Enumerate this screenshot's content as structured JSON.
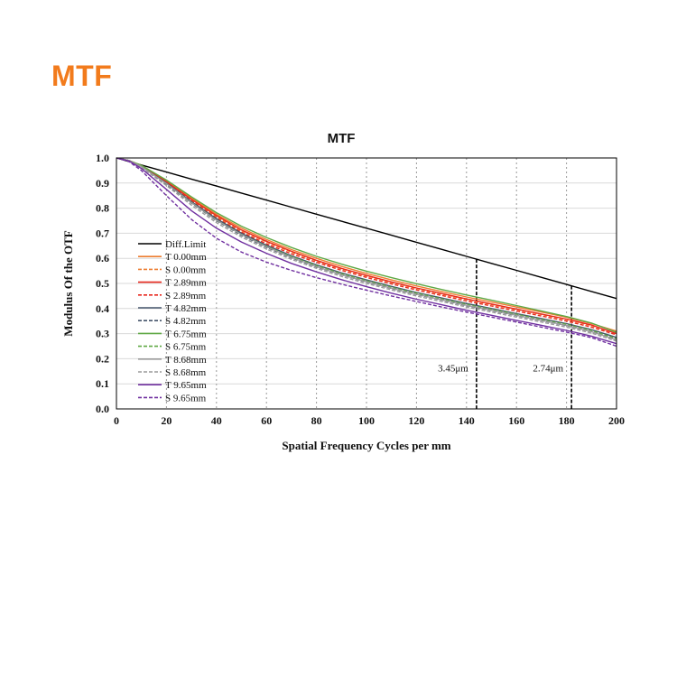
{
  "page": {
    "heading": "MTF"
  },
  "chart_data": {
    "type": "line",
    "title": "MTF",
    "xlabel": "Spatial Frequency Cycles per mm",
    "ylabel": "Modulus Of the OTF",
    "xlim": [
      0,
      200
    ],
    "ylim": [
      0,
      1.0
    ],
    "xticks": [
      "0",
      "20",
      "40",
      "60",
      "80",
      "100",
      "120",
      "140",
      "160",
      "180",
      "200"
    ],
    "yticks": [
      "0.0",
      "0.1",
      "0.2",
      "0.3",
      "0.4",
      "0.5",
      "0.6",
      "0.7",
      "0.8",
      "0.9",
      "1.0"
    ],
    "grid": {
      "vertical": "dotted",
      "horizontal": "solid-light"
    },
    "legend_position": "lower-left",
    "x": [
      0,
      5,
      10,
      20,
      30,
      40,
      50,
      60,
      70,
      80,
      90,
      100,
      110,
      120,
      130,
      140,
      150,
      160,
      170,
      180,
      190,
      200
    ],
    "series": [
      {
        "name": "Diff.Limit",
        "color": "#000000",
        "dash": "solid",
        "values": [
          1.0,
          0.986,
          0.972,
          0.944,
          0.916,
          0.888,
          0.86,
          0.832,
          0.804,
          0.776,
          0.748,
          0.72,
          0.692,
          0.664,
          0.636,
          0.608,
          0.58,
          0.552,
          0.524,
          0.496,
          0.468,
          0.44
        ]
      },
      {
        "name": "T 0.00mm",
        "color": "#ed7d31",
        "dash": "solid",
        "values": [
          1.0,
          0.99,
          0.97,
          0.91,
          0.84,
          0.775,
          0.72,
          0.675,
          0.635,
          0.6,
          0.568,
          0.54,
          0.514,
          0.49,
          0.468,
          0.446,
          0.426,
          0.406,
          0.386,
          0.365,
          0.34,
          0.31
        ]
      },
      {
        "name": "S 0.00mm",
        "color": "#ed7d31",
        "dash": "dashed",
        "values": [
          1.0,
          0.99,
          0.968,
          0.905,
          0.832,
          0.765,
          0.71,
          0.665,
          0.625,
          0.59,
          0.558,
          0.53,
          0.504,
          0.48,
          0.458,
          0.436,
          0.416,
          0.396,
          0.376,
          0.356,
          0.332,
          0.3
        ]
      },
      {
        "name": "T 2.89mm",
        "color": "#e8281e",
        "dash": "solid",
        "values": [
          1.0,
          0.99,
          0.968,
          0.905,
          0.835,
          0.77,
          0.713,
          0.668,
          0.628,
          0.592,
          0.56,
          0.532,
          0.506,
          0.482,
          0.46,
          0.438,
          0.418,
          0.398,
          0.378,
          0.358,
          0.334,
          0.3
        ]
      },
      {
        "name": "S 2.89mm",
        "color": "#e8281e",
        "dash": "dashed",
        "values": [
          1.0,
          0.99,
          0.966,
          0.9,
          0.828,
          0.76,
          0.704,
          0.658,
          0.618,
          0.584,
          0.552,
          0.524,
          0.498,
          0.474,
          0.452,
          0.43,
          0.41,
          0.39,
          0.37,
          0.35,
          0.326,
          0.295
        ]
      },
      {
        "name": "T 4.82mm",
        "color": "#44546a",
        "dash": "solid",
        "values": [
          1.0,
          0.99,
          0.966,
          0.9,
          0.826,
          0.758,
          0.7,
          0.652,
          0.61,
          0.574,
          0.542,
          0.514,
          0.488,
          0.464,
          0.442,
          0.42,
          0.4,
          0.38,
          0.36,
          0.34,
          0.316,
          0.285
        ]
      },
      {
        "name": "S 4.82mm",
        "color": "#44546a",
        "dash": "dashed",
        "values": [
          1.0,
          0.99,
          0.964,
          0.895,
          0.82,
          0.75,
          0.692,
          0.644,
          0.602,
          0.566,
          0.534,
          0.506,
          0.48,
          0.456,
          0.434,
          0.412,
          0.392,
          0.372,
          0.352,
          0.332,
          0.308,
          0.278
        ]
      },
      {
        "name": "T 6.75mm",
        "color": "#5fa844",
        "dash": "solid",
        "values": [
          1.0,
          0.99,
          0.97,
          0.912,
          0.845,
          0.782,
          0.728,
          0.683,
          0.643,
          0.608,
          0.577,
          0.549,
          0.523,
          0.499,
          0.476,
          0.454,
          0.433,
          0.412,
          0.39,
          0.368,
          0.342,
          0.305
        ]
      },
      {
        "name": "S 6.75mm",
        "color": "#5fa844",
        "dash": "dashed",
        "values": [
          1.0,
          0.99,
          0.966,
          0.898,
          0.822,
          0.752,
          0.695,
          0.648,
          0.607,
          0.571,
          0.539,
          0.511,
          0.485,
          0.461,
          0.439,
          0.417,
          0.397,
          0.377,
          0.357,
          0.337,
          0.313,
          0.28
        ]
      },
      {
        "name": "T 8.68mm",
        "color": "#9a9a9a",
        "dash": "solid",
        "values": [
          1.0,
          0.99,
          0.966,
          0.898,
          0.822,
          0.752,
          0.695,
          0.646,
          0.604,
          0.567,
          0.535,
          0.507,
          0.481,
          0.457,
          0.435,
          0.413,
          0.393,
          0.373,
          0.353,
          0.333,
          0.308,
          0.275
        ]
      },
      {
        "name": "S 8.68mm",
        "color": "#9a9a9a",
        "dash": "dashed",
        "values": [
          1.0,
          0.99,
          0.962,
          0.89,
          0.812,
          0.742,
          0.685,
          0.637,
          0.596,
          0.56,
          0.528,
          0.5,
          0.474,
          0.45,
          0.428,
          0.406,
          0.386,
          0.366,
          0.346,
          0.326,
          0.302,
          0.27
        ]
      },
      {
        "name": "T 9.65mm",
        "color": "#7030a0",
        "dash": "solid",
        "values": [
          1.0,
          0.988,
          0.958,
          0.875,
          0.79,
          0.72,
          0.665,
          0.62,
          0.58,
          0.546,
          0.515,
          0.487,
          0.461,
          0.437,
          0.415,
          0.393,
          0.373,
          0.353,
          0.333,
          0.313,
          0.29,
          0.26
        ]
      },
      {
        "name": "S 9.65mm",
        "color": "#7030a0",
        "dash": "dashed",
        "values": [
          1.0,
          0.986,
          0.95,
          0.85,
          0.755,
          0.68,
          0.625,
          0.585,
          0.552,
          0.523,
          0.497,
          0.473,
          0.45,
          0.428,
          0.406,
          0.386,
          0.366,
          0.346,
          0.326,
          0.306,
          0.284,
          0.25
        ]
      }
    ],
    "annotations": [
      {
        "text": "3.45μm",
        "x": 144,
        "style": "dashed-vertical"
      },
      {
        "text": "2.74μm",
        "x": 182,
        "style": "dashed-vertical"
      }
    ]
  }
}
